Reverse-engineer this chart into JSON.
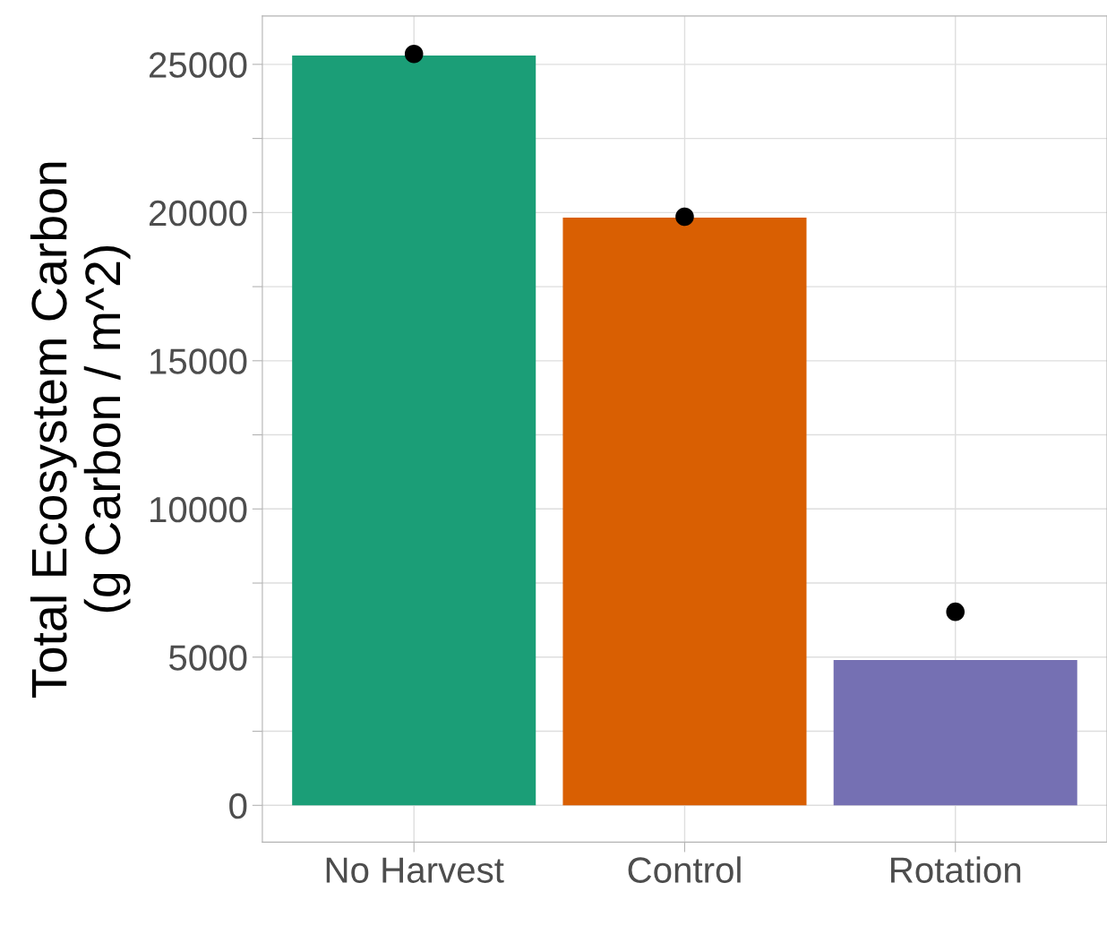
{
  "chart_data": {
    "type": "bar",
    "ylabel": "Total Ecosystem Carbon\n(g Carbon / m^2)",
    "categories": [
      "No Harvest",
      "Control",
      "Rotation"
    ],
    "series": [
      {
        "colors": [
          "#1b9e77",
          "#d95f02",
          "#7570b3"
        ],
        "values": [
          25300,
          19830,
          4900
        ]
      },
      {
        "type": "scatter",
        "x": [
          "No Harvest",
          "Control",
          "Rotation"
        ],
        "color": "#000000",
        "marker": "circle",
        "values": [
          25350,
          19860,
          6530
        ]
      }
    ],
    "ylim": [
      -1240,
      26630
    ],
    "yticks": [
      0,
      {
        "value": 2500,
        "label": null
      },
      5000,
      {
        "value": 7500,
        "label": null
      },
      10000,
      {
        "value": 12500,
        "label": null
      },
      15000,
      {
        "value": 17500,
        "label": null
      },
      20000,
      {
        "value": 22500,
        "label": null
      },
      25000
    ],
    "grid": true
  }
}
